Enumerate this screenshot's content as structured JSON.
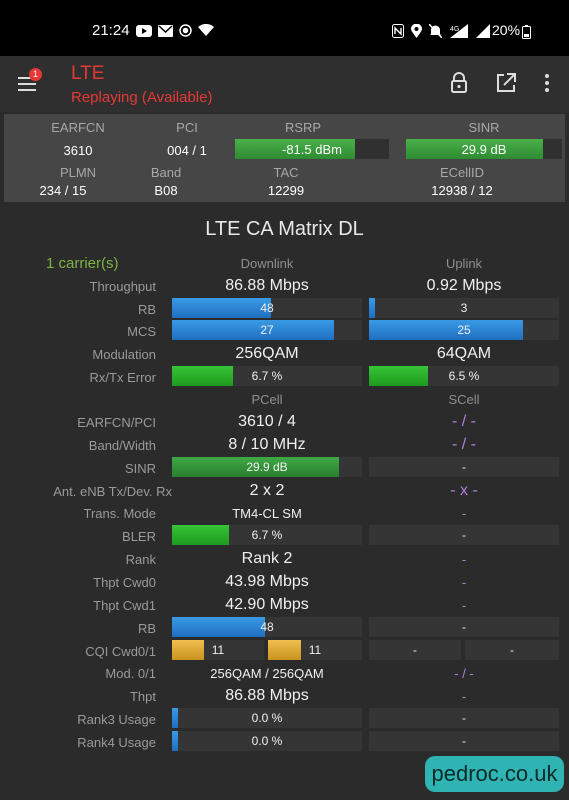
{
  "status": {
    "time": "21:24",
    "battery": "20%",
    "signal_tag": "4G"
  },
  "appbar": {
    "title": "LTE",
    "subtitle": "Replaying (Available)",
    "badge": "1"
  },
  "info": {
    "earfcn_label": "EARFCN",
    "earfcn": "3610",
    "pci_label": "PCI",
    "pci": "004 / 1",
    "rsrp_label": "RSRP",
    "rsrp": "-81.5 dBm",
    "rsrp_level": 0.78,
    "sinr_label": "SINR",
    "sinr": "29.9 dB",
    "sinr_level": 0.88,
    "plmn_label": "PLMN",
    "plmn": "234 / 15",
    "band_label": "Band",
    "band": "B08",
    "tac_label": "TAC",
    "tac": "12299",
    "ecellid_label": "ECellID",
    "ecellid": "12938 / 12"
  },
  "matrix": {
    "title": "LTE CA Matrix DL",
    "carriers": "1 carrier(s)",
    "downlink_label": "Downlink",
    "uplink_label": "Uplink",
    "pcell_label": "PCell",
    "scell_label": "SCell",
    "labels": {
      "throughput": "Throughput",
      "rb": "RB",
      "mcs": "MCS",
      "modulation": "Modulation",
      "rxtx_error": "Rx/Tx Error",
      "earfcn_pci": "EARFCN/PCI",
      "band_width": "Band/Width",
      "sinr": "SINR",
      "ant": "Ant. eNB Tx/Dev. Rx",
      "trans_mode": "Trans. Mode",
      "bler": "BLER",
      "rank": "Rank",
      "thpt_cwd0": "Thpt Cwd0",
      "thpt_cwd1": "Thpt Cwd1",
      "rb2": "RB",
      "cqi": "CQI Cwd0/1",
      "mod01": "Mod. 0/1",
      "thpt": "Thpt",
      "rank3": "Rank3 Usage",
      "rank4": "Rank4 Usage"
    },
    "dl": {
      "throughput": "86.88 Mbps",
      "rb": "48",
      "rb_level": 0.52,
      "mcs": "27",
      "mcs_level": 0.85,
      "modulation": "256QAM",
      "error": "6.7 %",
      "error_level": 0.32
    },
    "ul": {
      "throughput": "0.92 Mbps",
      "rb": "3",
      "rb_level": 0.03,
      "mcs": "25",
      "mcs_level": 0.81,
      "modulation": "64QAM",
      "error": "6.5 %",
      "error_level": 0.31
    },
    "pcell": {
      "earfcn_pci": "3610 / 4",
      "band_width": "8 / 10 MHz",
      "sinr": "29.9 dB",
      "sinr_level": 0.88,
      "ant": "2 x 2",
      "trans_mode": "TM4-CL SM",
      "bler": "6.7 %",
      "bler_level": 0.3,
      "rank": "Rank 2",
      "thpt_cwd0": "43.98 Mbps",
      "thpt_cwd1": "42.90 Mbps",
      "rb": "48",
      "rb_level": 0.49,
      "cqi0": "11",
      "cqi1": "11",
      "cqi_level": 0.35,
      "mod01": "256QAM / 256QAM",
      "thpt": "86.88 Mbps",
      "rank3": "0.0 %",
      "rank3_level": 0.03,
      "rank4": "0.0 %",
      "rank4_level": 0.03
    },
    "scell": {
      "earfcn_pci": "- / -",
      "band_width": "- / -",
      "sinr": "-",
      "ant": "- x -",
      "trans_mode": "-",
      "bler": "-",
      "rank": "-",
      "thpt_cwd0": "-",
      "thpt_cwd1": "-",
      "rb": "-",
      "cqi0": "-",
      "cqi1": "-",
      "mod01": "- / -",
      "thpt": "-",
      "rank3": "-",
      "rank4": "-"
    }
  },
  "watermark": "pedroc.co.uk"
}
